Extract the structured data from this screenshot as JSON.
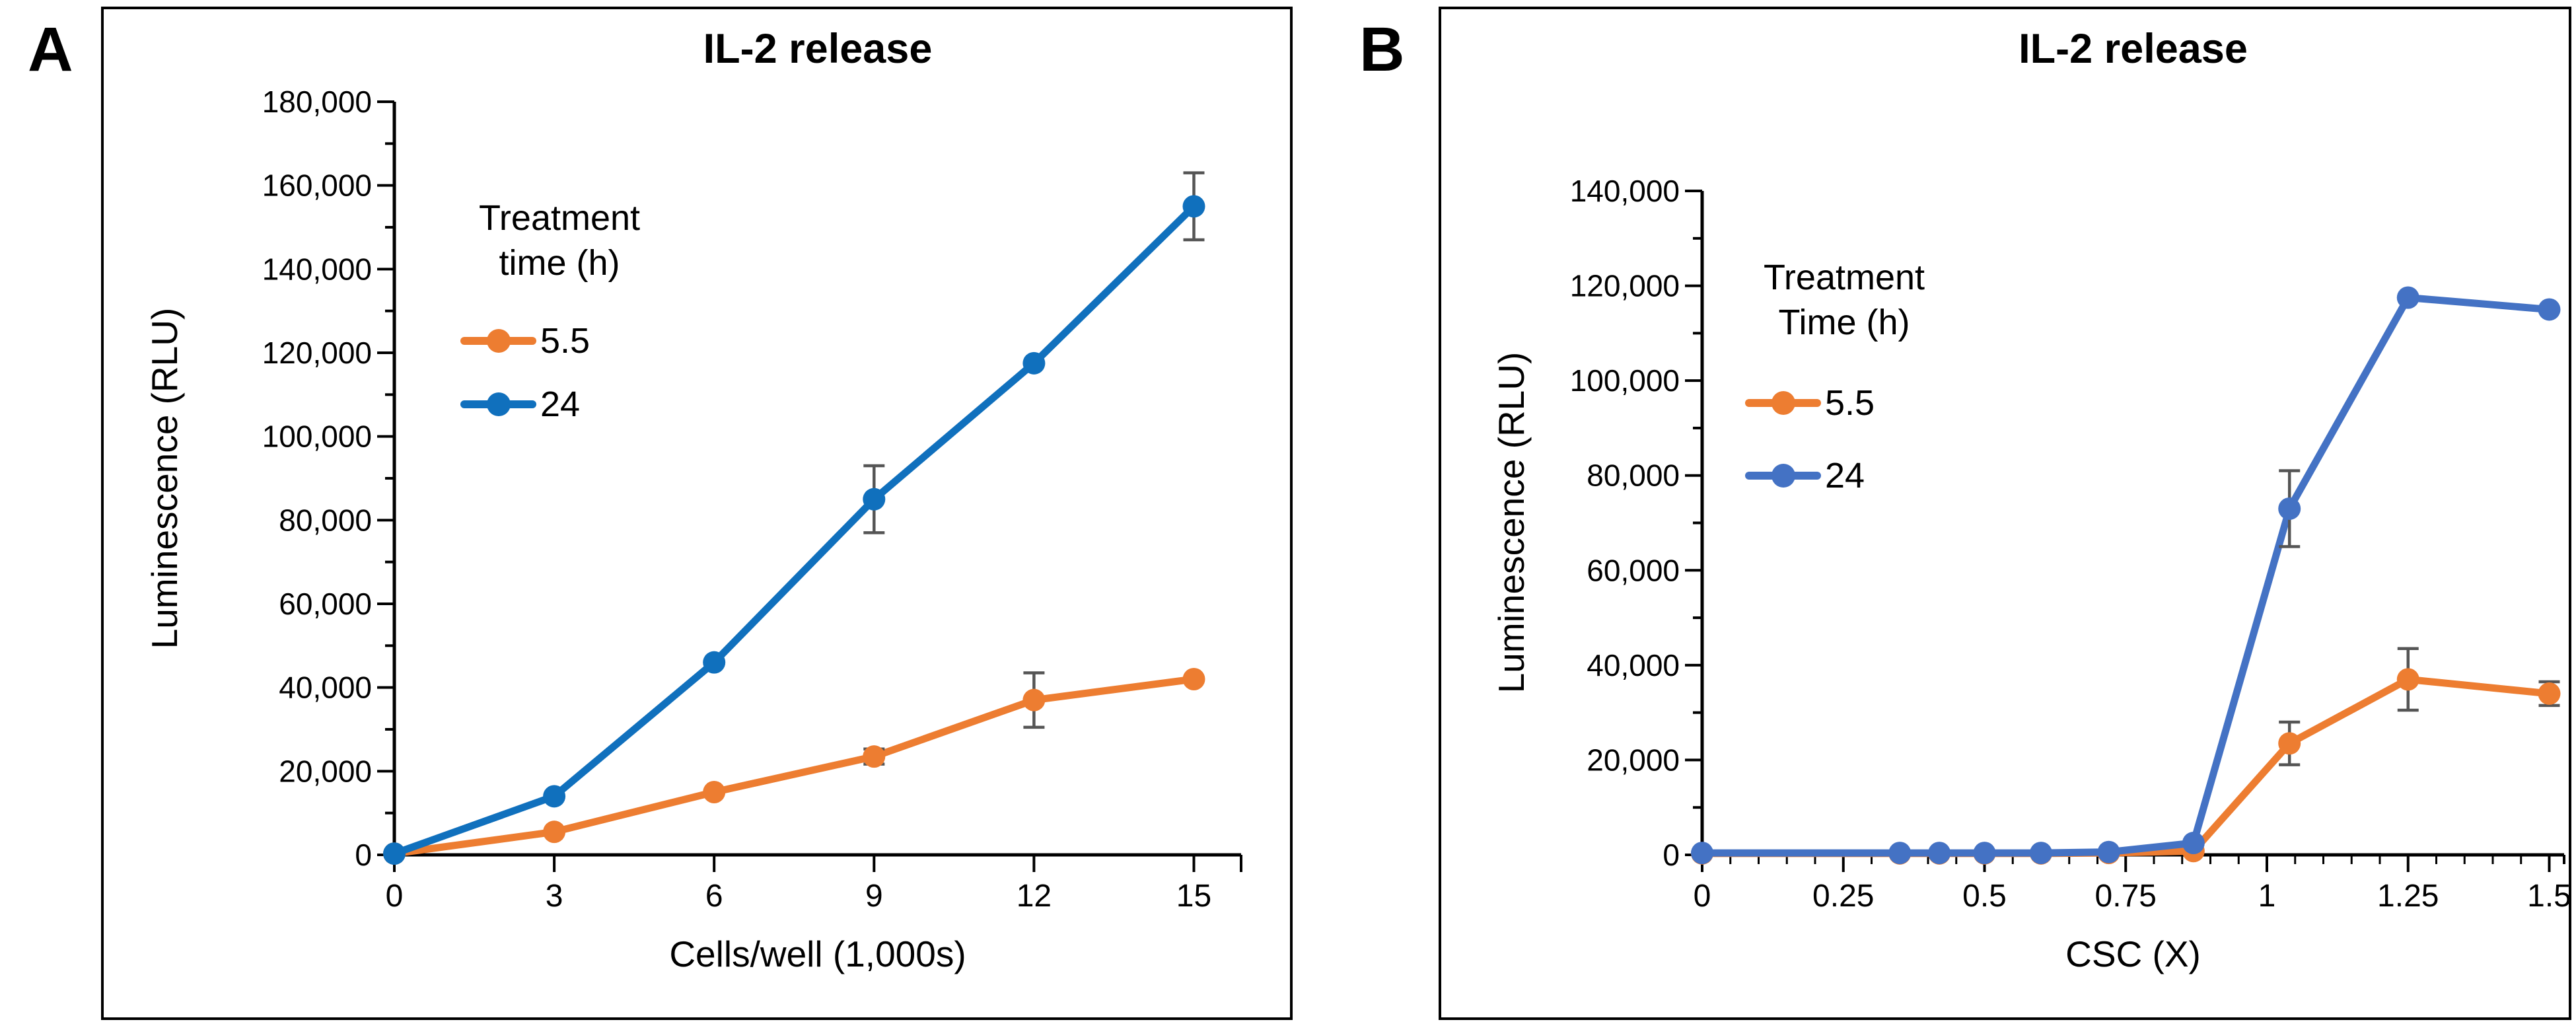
{
  "figure": {
    "background": "#ffffff",
    "axis_color": "#000000",
    "error_bar_color": "#555555"
  },
  "chart_data": [
    {
      "panel_label": "A",
      "type": "line",
      "title": "IL-2 release",
      "xlabel": "Cells/well (1,000s)",
      "ylabel": "Luminescence (RLU)",
      "xlim": [
        0,
        15
      ],
      "ylim": [
        0,
        180000
      ],
      "x_ticks": [
        0,
        3,
        6,
        9,
        12,
        15
      ],
      "x_tick_labels": [
        "0",
        "3",
        "6",
        "9",
        "12",
        "15"
      ],
      "y_major": 20000,
      "y_minor": 10000,
      "y_tick_labels": [
        "0",
        "20,000",
        "40,000",
        "60,000",
        "80,000",
        "100,000",
        "120,000",
        "140,000",
        "160,000",
        "180,000"
      ],
      "grid": false,
      "legend_position": "inside-upper-left",
      "legend": {
        "title_line1": "Treatment",
        "title_line2": "time (h)"
      },
      "series": [
        {
          "name": "5.5",
          "color": "#ED7D31",
          "x": [
            0,
            3,
            6,
            9,
            12,
            15
          ],
          "y": [
            300,
            5500,
            15000,
            23500,
            37000,
            42000
          ],
          "err": [
            0,
            0,
            0,
            1800,
            6500,
            0
          ]
        },
        {
          "name": "24",
          "color": "#1070BD",
          "x": [
            0,
            3,
            6,
            9,
            12,
            15
          ],
          "y": [
            300,
            14000,
            46000,
            85000,
            117500,
            155000
          ],
          "err": [
            0,
            0,
            0,
            8000,
            0,
            8000
          ]
        }
      ]
    },
    {
      "panel_label": "B",
      "type": "line",
      "title": "IL-2 release",
      "xlabel": "CSC (X)",
      "ylabel": "Luminescence (RLU)",
      "xlim": [
        0,
        1.5
      ],
      "ylim": [
        0,
        140000
      ],
      "x_major": 0.25,
      "x_minor": 0.05,
      "x_tick_labels": [
        "0",
        "0.25",
        "0.5",
        "0.75",
        "1",
        "1.25",
        "1.5"
      ],
      "y_major": 20000,
      "y_minor": 10000,
      "y_tick_labels": [
        "0",
        "20,000",
        "40,000",
        "60,000",
        "80,000",
        "100,000",
        "120,000",
        "140,000"
      ],
      "grid": false,
      "legend_position": "inside-upper-left",
      "legend": {
        "title_line1": "Treatment",
        "title_line2": "Time (h)"
      },
      "series": [
        {
          "name": "5.5",
          "color": "#ED7D31",
          "x": [
            0,
            0.35,
            0.42,
            0.5,
            0.6,
            0.72,
            0.87,
            1.04,
            1.25,
            1.5
          ],
          "y": [
            300,
            300,
            300,
            300,
            300,
            400,
            800,
            23500,
            37000,
            34000
          ],
          "err": [
            0,
            0,
            0,
            0,
            0,
            0,
            0,
            4500,
            6500,
            2500
          ]
        },
        {
          "name": "24",
          "color": "#4472C4",
          "x": [
            0,
            0.35,
            0.42,
            0.5,
            0.6,
            0.72,
            0.87,
            1.04,
            1.25,
            1.5
          ],
          "y": [
            400,
            400,
            400,
            400,
            400,
            600,
            2500,
            73000,
            117500,
            115000
          ],
          "err": [
            0,
            0,
            0,
            0,
            0,
            0,
            0,
            8000,
            0,
            0
          ]
        }
      ]
    }
  ]
}
